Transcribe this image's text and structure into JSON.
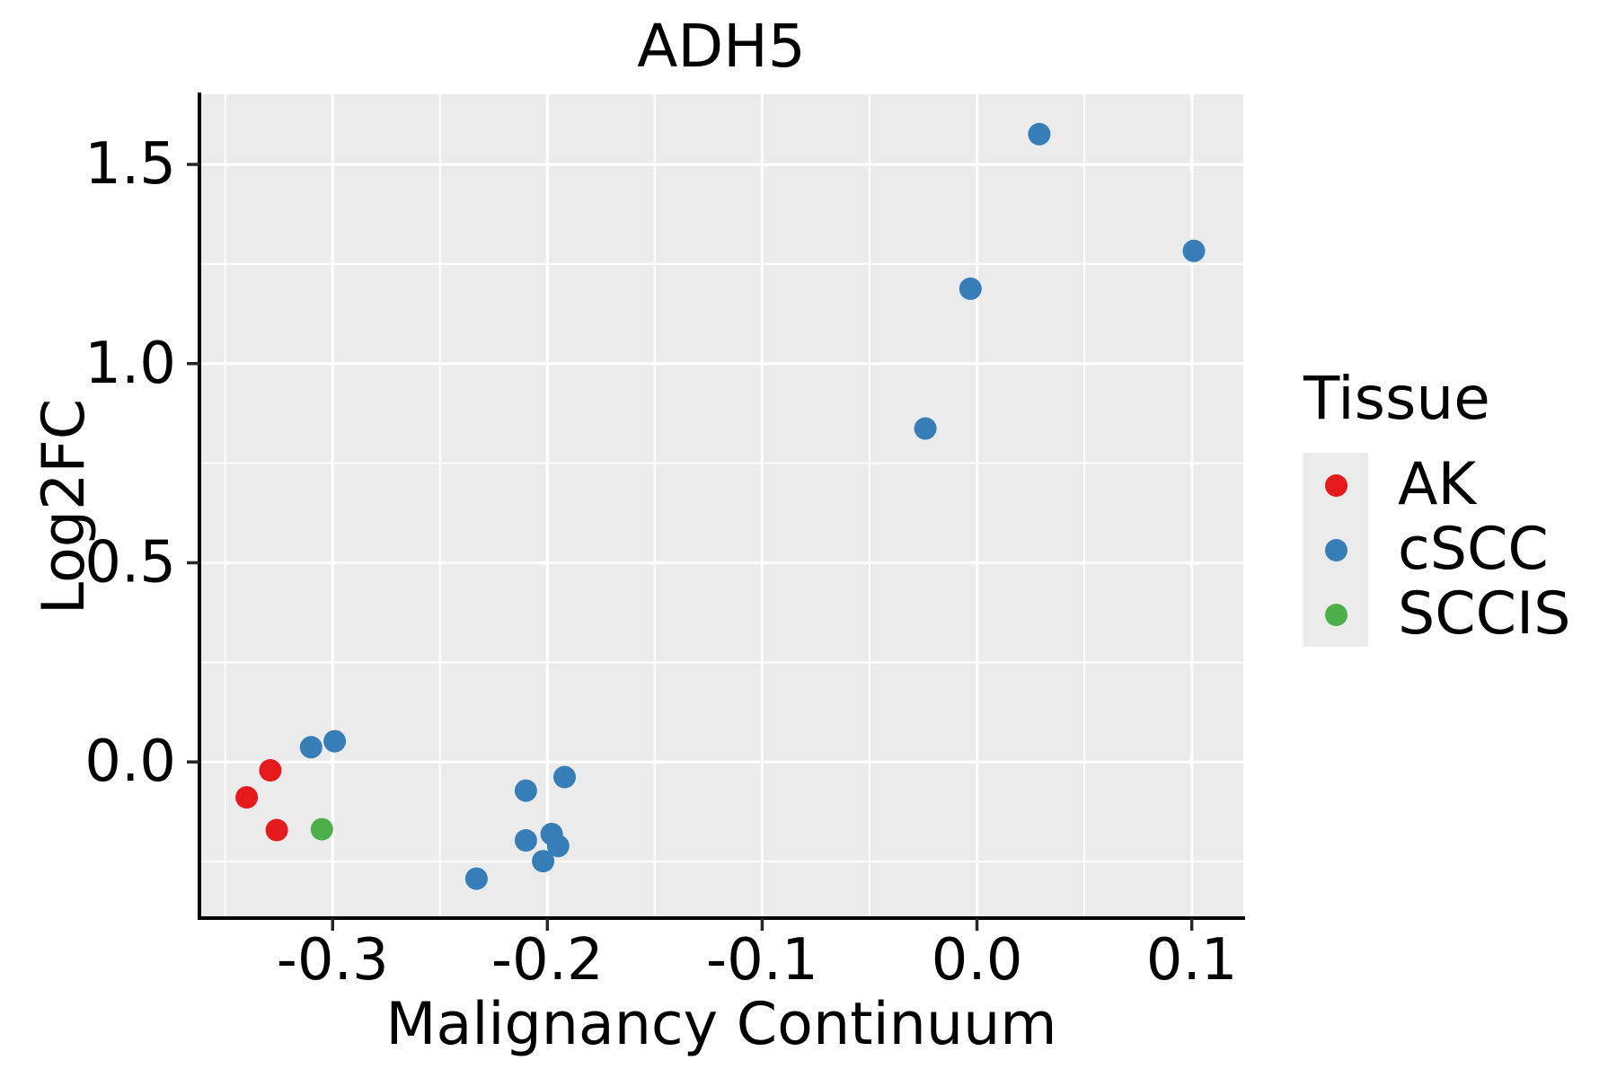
{
  "title": "ADH5",
  "legend": {
    "title": "Tissue",
    "items": [
      {
        "label": "AK",
        "color": "#E41A1C"
      },
      {
        "label": "cSCC",
        "color": "#377EB8"
      },
      {
        "label": "SCCIS",
        "color": "#4DAF4A"
      }
    ]
  },
  "colors": {
    "panel_background": "#EBEBEB",
    "gridline": "#FFFFFF",
    "axis_line": "#000000",
    "tick_mark": "#262626",
    "text": "#000000",
    "figure_background": "#FFFFFF"
  },
  "chart_data": {
    "type": "scatter",
    "title": "ADH5",
    "xlabel": "Malignancy Continuum",
    "ylabel": "Log2FC",
    "xlim": [
      -0.362,
      0.124
    ],
    "ylim": [
      -0.392,
      1.676
    ],
    "x_major_ticks": [
      -0.3,
      -0.2,
      -0.1,
      0.0,
      0.1
    ],
    "x_tick_labels": [
      "-0.3",
      "-0.2",
      "-0.1",
      "0.0",
      "0.1"
    ],
    "x_minor_ticks": [
      -0.35,
      -0.25,
      -0.15,
      -0.05,
      0.05
    ],
    "y_major_ticks": [
      0.0,
      0.5,
      1.0,
      1.5
    ],
    "y_tick_labels": [
      "0.0",
      "0.5",
      "1.0",
      "1.5"
    ],
    "y_minor_ticks": [
      -0.25,
      0.25,
      0.75,
      1.25
    ],
    "grid": "major and minor white gridlines on gray panel",
    "legend_position": "right",
    "marker": "circle",
    "point_radius": 12.5,
    "series": [
      {
        "name": "AK",
        "color": "#E41A1C",
        "points": [
          [
            -0.329,
            -0.021
          ],
          [
            -0.34,
            -0.089
          ],
          [
            -0.326,
            -0.171
          ]
        ]
      },
      {
        "name": "cSCC",
        "color": "#377EB8",
        "points": [
          [
            -0.31,
            0.037
          ],
          [
            -0.299,
            0.052
          ],
          [
            -0.233,
            -0.293
          ],
          [
            -0.21,
            -0.072
          ],
          [
            -0.192,
            -0.038
          ],
          [
            -0.21,
            -0.197
          ],
          [
            -0.198,
            -0.181
          ],
          [
            -0.195,
            -0.211
          ],
          [
            -0.202,
            -0.249
          ],
          [
            -0.024,
            0.837
          ],
          [
            -0.003,
            1.188
          ],
          [
            0.029,
            1.576
          ],
          [
            0.101,
            1.283
          ]
        ]
      },
      {
        "name": "SCCIS",
        "color": "#4DAF4A",
        "points": [
          [
            -0.305,
            -0.169
          ]
        ]
      }
    ]
  }
}
